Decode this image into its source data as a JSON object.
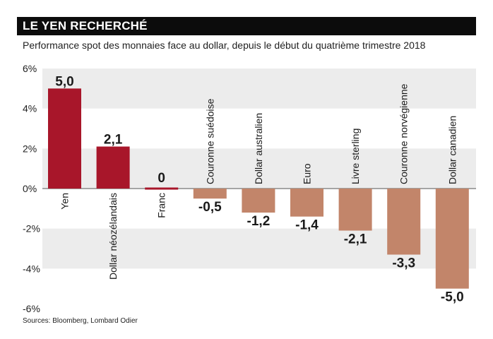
{
  "header": {
    "title": "LE YEN RECHERCHÉ",
    "subtitle": "Performance spot des monnaies face au dollar, depuis le début du quatrième trimestre 2018"
  },
  "footer": {
    "source": "Sources: Bloomberg, Lombard Odier"
  },
  "colors": {
    "positive": "#a8162a",
    "negative": "#c2856a",
    "band": "#ececec",
    "zero_line": "#555555"
  },
  "chart_data": {
    "type": "bar",
    "title": "LE YEN RECHERCHÉ",
    "subtitle": "Performance spot des monnaies face au dollar, depuis le début du quatrième trimestre 2018",
    "categories": [
      "Yen",
      "Dollar néozélandais",
      "Franc",
      "Couronne suédoise",
      "Dollar australien",
      "Euro",
      "Livre sterling",
      "Couronne norvégienne",
      "Dollar canadien"
    ],
    "values": [
      5.0,
      2.1,
      0.0,
      -0.5,
      -1.2,
      -1.4,
      -2.1,
      -3.3,
      -5.0
    ],
    "data_labels": [
      "5,0",
      "2,1",
      "0",
      "-0,5",
      "-1,2",
      "-1,4",
      "-2,1",
      "-3,3",
      "-5,0"
    ],
    "yticks": [
      6,
      4,
      2,
      0,
      -2,
      -4,
      -6
    ],
    "ytick_labels": [
      "6%",
      "4%",
      "2%",
      "0%",
      "-2%",
      "-4%",
      "-6%"
    ],
    "ylim": [
      -6,
      6
    ],
    "xlabel": "",
    "ylabel": "",
    "grid": "alternating horizontal bands",
    "legend": "none"
  }
}
